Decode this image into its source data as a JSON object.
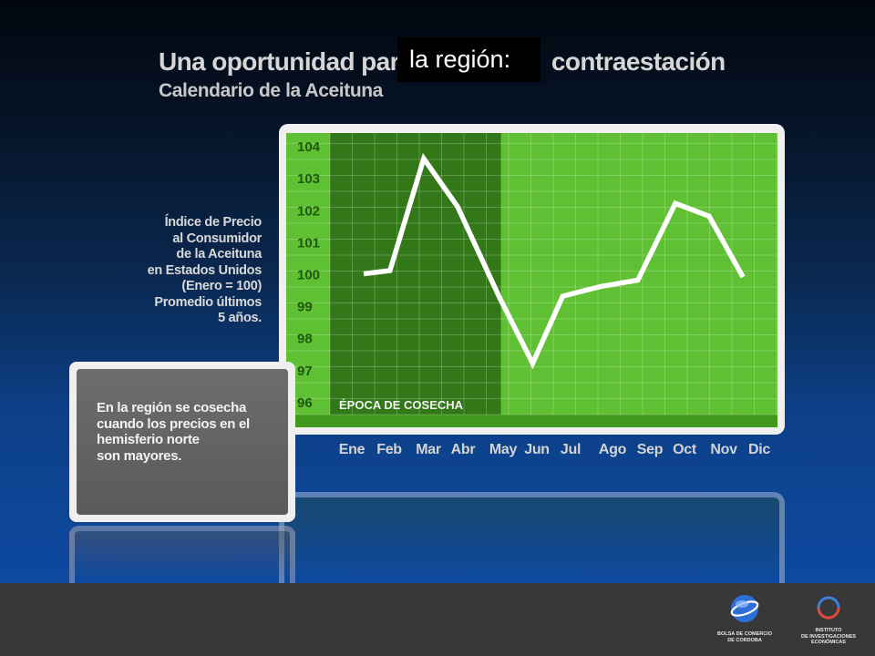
{
  "header": {
    "title_left": "Una oportunidad para",
    "title_right": "contraestación",
    "title_highlight": "la región:",
    "subtitle": "Calendario de la Aceituna"
  },
  "chart_data": {
    "type": "line",
    "ylabel_lines": [
      "Índice de Precio",
      "al Consumidor",
      "de la Aceituna",
      "en Estados Unidos",
      "(Enero = 100)",
      "Promedio últimos",
      "5 años."
    ],
    "categories": [
      "Ene",
      "Feb",
      "Mar",
      "Abr",
      "May",
      "Jun",
      "Jul",
      "Ago",
      "Sep",
      "Oct",
      "Nov",
      "Dic"
    ],
    "x_positions": [
      0,
      1,
      2,
      3,
      4,
      5,
      6,
      7,
      8,
      9,
      10,
      11
    ],
    "series": [
      {
        "x": [
          0,
          0.7,
          1.6,
          2.5,
          3.6,
          4.5,
          5.3,
          6.3,
          7.3,
          8.3,
          9.2,
          10.1
        ],
        "values": [
          100.0,
          100.1,
          103.6,
          102.1,
          99.3,
          97.2,
          99.3,
          99.6,
          99.8,
          102.2,
          101.8,
          99.9
        ]
      }
    ],
    "ylim": [
      95.6,
      104.4
    ],
    "yticks": [
      96,
      97,
      98,
      99,
      100,
      101,
      102,
      103,
      104
    ],
    "harvest_band": {
      "label": "ÉPOCA DE COSECHA",
      "from": "Ene",
      "to": "Abr"
    },
    "grid": true,
    "colors": {
      "plot_bg": "#5ec032",
      "harvest_bg": "#327818",
      "line": "#ffffff",
      "tick_text": "#1f5a10"
    }
  },
  "note": {
    "lines": [
      "En la región se cosecha",
      "cuando los precios en el",
      "hemisferio norte",
      "son mayores."
    ]
  },
  "footer": {
    "logo_left": {
      "icon": "globe-icon",
      "text": [
        "BOLSA DE COMERCIO",
        "DE CORDOBA"
      ]
    },
    "logo_right": {
      "icon": "ring-icon",
      "text": [
        "INSTITUTO",
        "DE INVESTIGACIONES",
        "ECONÓMICAS"
      ]
    }
  }
}
